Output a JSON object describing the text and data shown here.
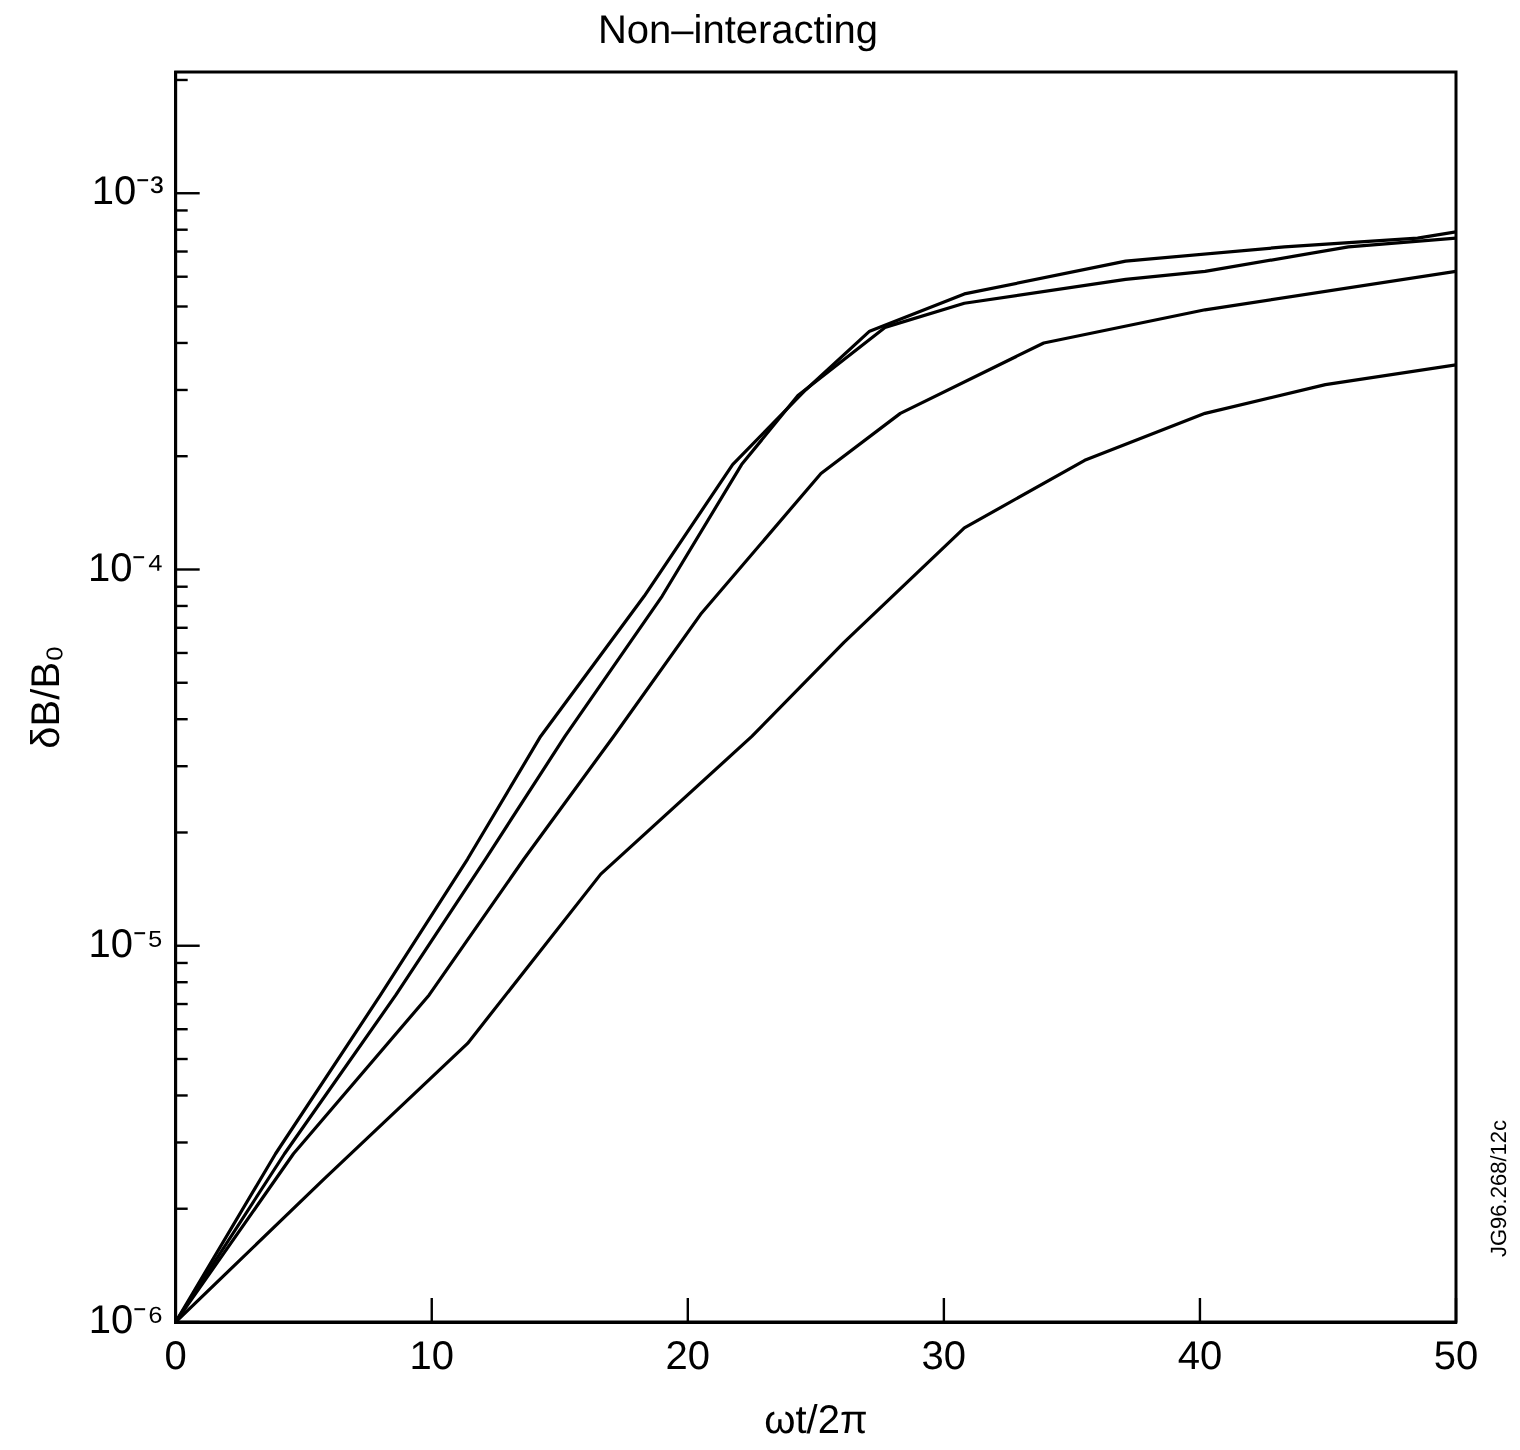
{
  "chart_data": {
    "type": "line",
    "title": "Non–interacting",
    "xlabel": "ωt/2π",
    "ylabel": "δB/B₀",
    "log": "y",
    "grid": false,
    "legend": false,
    "marker": "none",
    "line_style": "solid",
    "xlim": [
      0,
      50
    ],
    "xticks": [
      0,
      10,
      20,
      30,
      40,
      50
    ],
    "ylim": [
      1e-06,
      0.0021
    ],
    "yticks": [
      {
        "value": 1e-06,
        "label": "10⁻⁶"
      },
      {
        "value": 2e-06,
        "label": null
      },
      {
        "value": 3e-06,
        "label": null
      },
      {
        "value": 4e-06,
        "label": null
      },
      {
        "value": 5e-06,
        "label": null
      },
      {
        "value": 6e-06,
        "label": null
      },
      {
        "value": 7e-06,
        "label": null
      },
      {
        "value": 8e-06,
        "label": null
      },
      {
        "value": 9e-06,
        "label": null
      },
      {
        "value": 1e-05,
        "label": "10⁻⁵"
      },
      {
        "value": 2e-05,
        "label": null
      },
      {
        "value": 3e-05,
        "label": null
      },
      {
        "value": 4e-05,
        "label": null
      },
      {
        "value": 5e-05,
        "label": null
      },
      {
        "value": 6e-05,
        "label": null
      },
      {
        "value": 7e-05,
        "label": null
      },
      {
        "value": 8e-05,
        "label": null
      },
      {
        "value": 9e-05,
        "label": null
      },
      {
        "value": 0.0001,
        "label": "10⁻⁴"
      },
      {
        "value": 0.0002,
        "label": null
      },
      {
        "value": 0.0003,
        "label": null
      },
      {
        "value": 0.0004,
        "label": null
      },
      {
        "value": 0.0005,
        "label": null
      },
      {
        "value": 0.0006,
        "label": null
      },
      {
        "value": 0.0007,
        "label": null
      },
      {
        "value": 0.0008,
        "label": null
      },
      {
        "value": 0.0009,
        "label": null
      },
      {
        "value": 0.001,
        "label": "10⁻³"
      },
      {
        "value": 0.002,
        "label": null
      }
    ],
    "annotations": [
      "JG96.268/12c"
    ],
    "series": [
      {
        "color": "#000000",
        "x": [
          0,
          3.9,
          8,
          11.4,
          14.25,
          18.3,
          21.75,
          24.6,
          27.1,
          30.8,
          37.1,
          43.3,
          48.5,
          50
        ],
        "values": [
          1e-06,
          2.8e-06,
          7.4e-06,
          1.7e-05,
          3.6e-05,
          8.5e-05,
          0.00019,
          0.0003,
          0.00043,
          0.00054,
          0.00066,
          0.00072,
          0.00076,
          0.00079
        ]
      },
      {
        "color": "#000000",
        "x": [
          0,
          4.25,
          8.6,
          12.1,
          15.2,
          19,
          22.1,
          24.3,
          27.7,
          30.8,
          37.1,
          40.2,
          45.8,
          50
        ],
        "values": [
          1e-06,
          2.8e-06,
          7.4e-06,
          1.7e-05,
          3.6e-05,
          8.5e-05,
          0.00019,
          0.00029,
          0.00044,
          0.00051,
          0.00059,
          0.00062,
          0.00072,
          0.00076
        ]
      },
      {
        "color": "#000000",
        "x": [
          0,
          4.6,
          9.9,
          13.6,
          17.1,
          20.5,
          25.2,
          28.3,
          33.9,
          40.2,
          50
        ],
        "values": [
          1e-06,
          2.8e-06,
          7.4e-06,
          1.7e-05,
          3.6e-05,
          7.6e-05,
          0.00018,
          0.00026,
          0.0004,
          0.00049,
          0.00062
        ]
      },
      {
        "color": "#000000",
        "x": [
          0,
          5.8,
          11.4,
          16.6,
          22.5,
          26.1,
          30.8,
          35.5,
          40.2,
          44.9,
          50
        ],
        "values": [
          1e-06,
          2.4e-06,
          5.5e-06,
          1.55e-05,
          3.6e-05,
          6.4e-05,
          0.000129,
          0.000195,
          0.00026,
          0.00031,
          0.00035
        ]
      }
    ]
  }
}
